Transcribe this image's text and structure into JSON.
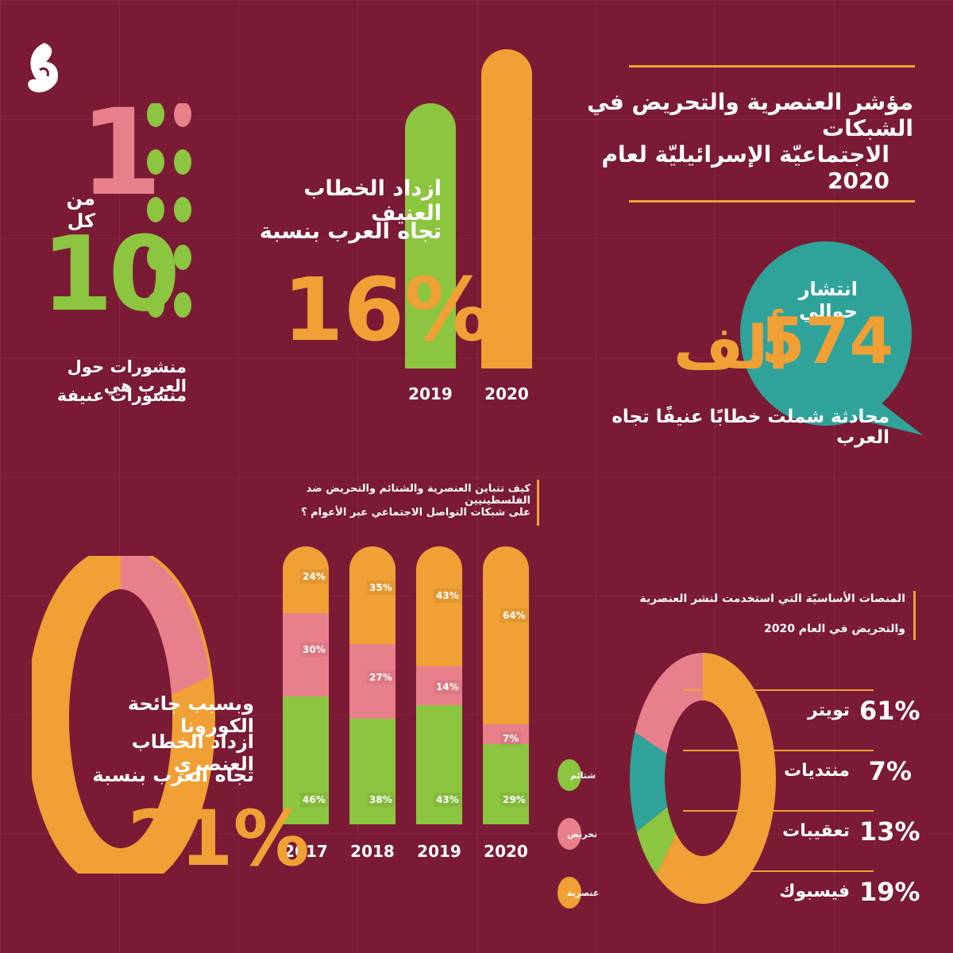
{
  "header": {
    "title_line1": "مؤشر العنصرية والتحريض في الشبكات",
    "title_line2": "الاجتماعيّة الإسرائيليّة لعام 2020"
  },
  "ratio": {
    "one": "1",
    "of_each": "من كل",
    "ten": "10",
    "caption_line1": "منشورات حول العرب هي",
    "caption_line2": "منشورات عنيفة"
  },
  "violent_increase": {
    "line1": "ازداد الخطاب العنيف",
    "line2": "تجاه العرب بنسبة",
    "percent": "16%"
  },
  "spread": {
    "label": "انتشار حوالي",
    "number": "574",
    "unit": "ألف",
    "caption": "محادثة شملت خطابًا عنيفًا تجاه العرب"
  },
  "stacked_title": {
    "line1": "كيف تتباين العنصرية والشتائم والتحريض ضد الفلسطينيين",
    "line2": "على شبكات التواصل الاجتماعي عبر الأعوام ؟"
  },
  "corona": {
    "line1": "وبسبب جائحة الكورونا",
    "line2": "ازداد الخطاب العنصري",
    "line3": "تجاه العرب بنسبة",
    "percent": "21%"
  },
  "platforms_title": {
    "line1": "المنصات الأساسيّة التي استخدمت لنشر العنصرية",
    "line2": "والتحريض في العام 2020"
  },
  "legend": {
    "insults": "شتائم",
    "incitement": "تحريض",
    "racism": "عنصرية"
  },
  "colors": {
    "background": "#7a1a35",
    "orange": "#f0a035",
    "green": "#8cc540",
    "pink": "#e8808c",
    "teal": "#2fa39a"
  },
  "chart_data": [
    {
      "type": "bar",
      "categories": [
        "2019",
        "2020"
      ]
    },
    {
      "type": "bar",
      "stacked": true,
      "categories": [
        "2017",
        "2018",
        "2019",
        "2020"
      ],
      "series": [
        {
          "name": "شتائم",
          "values": [
            "46%",
            "38%",
            "43%",
            "29%"
          ]
        },
        {
          "name": "تحريض",
          "values": [
            "30%",
            "27%",
            "14%",
            "7%"
          ]
        },
        {
          "name": "عنصرية",
          "values": [
            "24%",
            "35%",
            "43%",
            "64%"
          ]
        }
      ]
    },
    {
      "type": "pie",
      "labels": [
        "تويتر",
        "منتديات",
        "تعقيبات",
        "فيسبوك"
      ],
      "values": [
        "61%",
        "7%",
        "13%",
        "19%"
      ]
    },
    {
      "type": "pie",
      "values": [
        "21%"
      ]
    }
  ]
}
